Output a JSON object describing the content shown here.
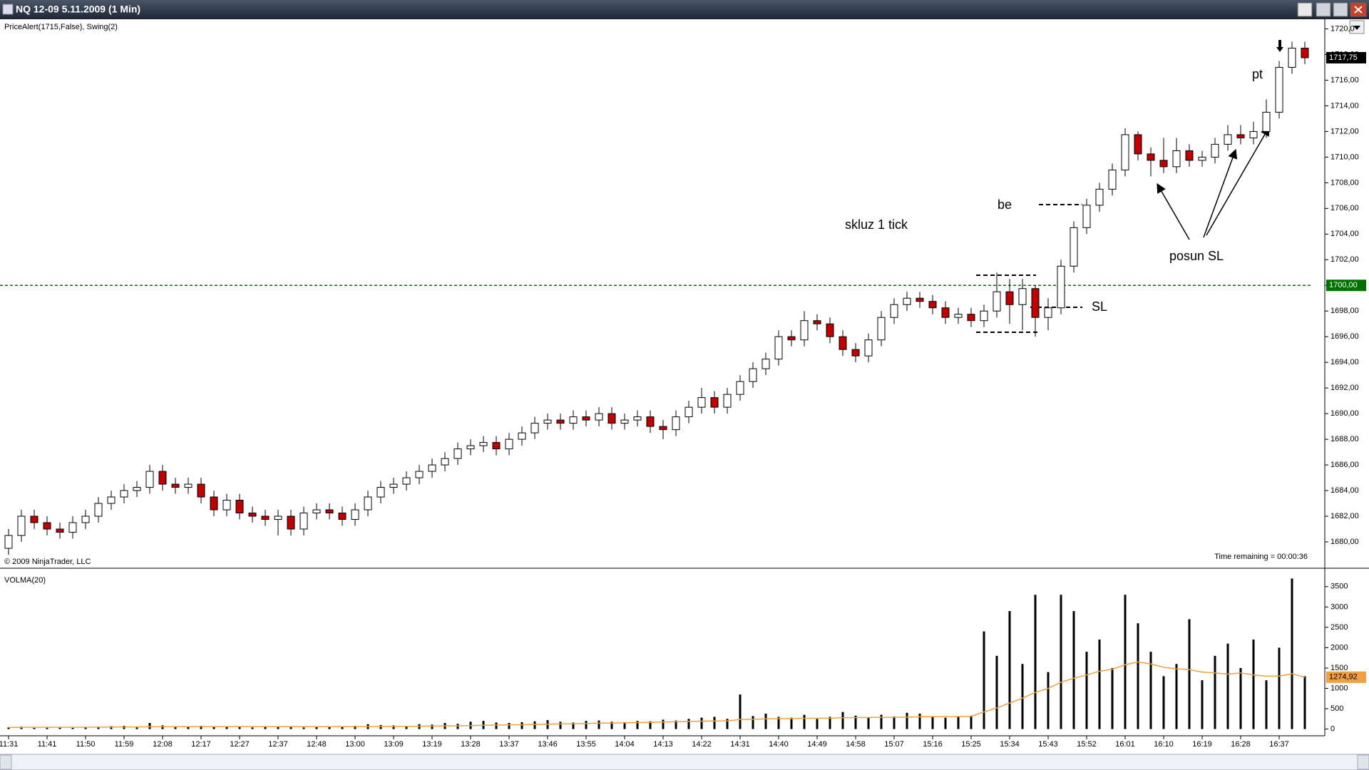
{
  "window": {
    "title": "NQ 12-09  5.11.2009 (1 Min)"
  },
  "chart_data": [
    {
      "type": "candlestick",
      "indicator_label": "PriceAlert(1715,False), Swing(2)",
      "copyright": "© 2009 NinjaTrader, LLC",
      "time_remaining": "Time remaining = 00:00:36",
      "annotations": [
        "skluz 1 tick",
        "be",
        "SL",
        "pt",
        "posun SL"
      ],
      "up_color": "#ffffff",
      "down_color": "#c00000",
      "ylim": [
        1678,
        1720.75
      ],
      "yticks": [
        {
          "value": 1680,
          "label": "1680,00"
        },
        {
          "value": 1682,
          "label": "1682,00"
        },
        {
          "value": 1684,
          "label": "1684,00"
        },
        {
          "value": 1686,
          "label": "1686,00"
        },
        {
          "value": 1688,
          "label": "1688,00"
        },
        {
          "value": 1690,
          "label": "1690,00"
        },
        {
          "value": 1692,
          "label": "1692,00"
        },
        {
          "value": 1694,
          "label": "1694,00"
        },
        {
          "value": 1696,
          "label": "1696,00"
        },
        {
          "value": 1698,
          "label": "1698,00"
        },
        {
          "value": 1700,
          "label": "1700,00"
        },
        {
          "value": 1702,
          "label": "1702,00"
        },
        {
          "value": 1704,
          "label": "1704,00"
        },
        {
          "value": 1706,
          "label": "1706,00"
        },
        {
          "value": 1708,
          "label": "1708,00"
        },
        {
          "value": 1710,
          "label": "1710,00"
        },
        {
          "value": 1712,
          "label": "1712,00"
        },
        {
          "value": 1714,
          "label": "1714,00"
        },
        {
          "value": 1716,
          "label": "1716,00"
        },
        {
          "value": 1718,
          "label": "1718,00"
        },
        {
          "value": 1720,
          "label": "1720,0"
        }
      ],
      "last_label": "1717,75",
      "alert": {
        "value": 1700,
        "label": "1700,00",
        "color": "#007000"
      },
      "open": [
        1679.5,
        1680.5,
        1682,
        1681.5,
        1681,
        1680.75,
        1681.5,
        1682,
        1683,
        1683.5,
        1684,
        1684.25,
        1685.5,
        1684.5,
        1684.25,
        1684.5,
        1683.5,
        1682.5,
        1683.25,
        1682.25,
        1682,
        1681.75,
        1682,
        1681,
        1682.25,
        1682.5,
        1682.25,
        1681.75,
        1682.5,
        1683.5,
        1684.25,
        1684.5,
        1685,
        1685.5,
        1686,
        1686.5,
        1687.25,
        1687.5,
        1687.75,
        1687.25,
        1688,
        1688.5,
        1689.25,
        1689.5,
        1689.25,
        1689.75,
        1689.5,
        1690,
        1689.25,
        1689.5,
        1689.75,
        1689,
        1688.75,
        1689.75,
        1690.5,
        1691.25,
        1690.5,
        1691.5,
        1692.5,
        1693.5,
        1694.25,
        1696,
        1695.75,
        1697.25,
        1697,
        1696,
        1695,
        1694.5,
        1695.75,
        1697.5,
        1698.5,
        1699,
        1698.75,
        1698.25,
        1697.5,
        1697.75,
        1697.25,
        1698,
        1699.5,
        1698.5,
        1699.75,
        1697.5,
        1698.25,
        1701.5,
        1704.5,
        1706.25,
        1707.5,
        1709,
        1711.75,
        1710.25,
        1709.75,
        1709.25,
        1710.5,
        1709.75,
        1710,
        1711,
        1711.75,
        1711.5,
        1712,
        1713.5,
        1717,
        1718.5
      ],
      "high": [
        1681,
        1682.5,
        1682.5,
        1682,
        1681.5,
        1682,
        1682.5,
        1683.5,
        1684,
        1684.5,
        1684.75,
        1686,
        1686,
        1685,
        1685,
        1685,
        1684,
        1683.75,
        1683.75,
        1682.75,
        1682.5,
        1682.5,
        1682.5,
        1682.75,
        1683,
        1683,
        1682.75,
        1683,
        1684,
        1684.75,
        1685,
        1685.5,
        1686,
        1686.5,
        1687,
        1687.75,
        1688,
        1688.25,
        1688.25,
        1688.5,
        1689,
        1689.75,
        1690,
        1690,
        1690.25,
        1690.25,
        1690.5,
        1690.5,
        1690,
        1690.25,
        1690.25,
        1689.5,
        1690.25,
        1691,
        1692,
        1691.75,
        1692,
        1693,
        1694,
        1694.75,
        1696.5,
        1696.5,
        1698,
        1697.75,
        1697.5,
        1696.5,
        1695.5,
        1696.25,
        1698,
        1699,
        1699.5,
        1699.5,
        1699.25,
        1698.75,
        1698.25,
        1698.25,
        1698.5,
        1701,
        1700.5,
        1700.5,
        1700,
        1699,
        1702,
        1705,
        1706.75,
        1708,
        1709.5,
        1712.25,
        1712,
        1710.75,
        1711.5,
        1711.5,
        1711,
        1710.5,
        1711.5,
        1712.5,
        1712.5,
        1712.75,
        1714.5,
        1717.5,
        1719,
        1719
      ],
      "low": [
        1679,
        1680,
        1681,
        1680.5,
        1680.25,
        1680.25,
        1681,
        1681.5,
        1682.5,
        1683,
        1683.5,
        1683.75,
        1684,
        1683.75,
        1683.75,
        1683,
        1682,
        1682,
        1681.75,
        1681.5,
        1681.25,
        1680.5,
        1680.5,
        1680.5,
        1681.75,
        1681.75,
        1681.25,
        1681.25,
        1682,
        1683,
        1683.75,
        1684,
        1684.5,
        1685,
        1685.5,
        1686,
        1686.75,
        1687,
        1686.75,
        1686.75,
        1687.5,
        1688,
        1688.75,
        1688.75,
        1688.75,
        1689,
        1689,
        1688.75,
        1688.75,
        1689,
        1688.5,
        1688,
        1688.25,
        1689.25,
        1690,
        1690,
        1690,
        1691,
        1692,
        1693,
        1693.75,
        1695.25,
        1695.25,
        1696.5,
        1695.5,
        1694.5,
        1694,
        1694,
        1695.25,
        1697,
        1698,
        1698.25,
        1697.75,
        1697,
        1697,
        1696.75,
        1696.75,
        1697.5,
        1697,
        1696.5,
        1696,
        1696.5,
        1697.75,
        1701,
        1704,
        1705.75,
        1707,
        1708.5,
        1709.75,
        1708.5,
        1708.75,
        1708.75,
        1709.25,
        1709.25,
        1709.5,
        1710.5,
        1711,
        1711,
        1711.5,
        1713,
        1716.5,
        1717.25
      ],
      "close": [
        1680.5,
        1682,
        1681.5,
        1681,
        1680.75,
        1681.5,
        1682,
        1683,
        1683.5,
        1684,
        1684.25,
        1685.5,
        1684.5,
        1684.25,
        1684.5,
        1683.5,
        1682.5,
        1683.25,
        1682.25,
        1682,
        1681.75,
        1682,
        1681,
        1682.25,
        1682.5,
        1682.25,
        1681.75,
        1682.5,
        1683.5,
        1684.25,
        1684.5,
        1685,
        1685.5,
        1686,
        1686.5,
        1687.25,
        1687.5,
        1687.75,
        1687.25,
        1688,
        1688.5,
        1689.25,
        1689.5,
        1689.25,
        1689.75,
        1689.5,
        1690,
        1689.25,
        1689.5,
        1689.75,
        1689,
        1688.75,
        1689.75,
        1690.5,
        1691.25,
        1690.5,
        1691.5,
        1692.5,
        1693.5,
        1694.25,
        1696,
        1695.75,
        1697.25,
        1697,
        1696,
        1695,
        1694.5,
        1695.75,
        1697.5,
        1698.5,
        1699,
        1698.75,
        1698.25,
        1697.5,
        1697.75,
        1697.25,
        1698,
        1699.5,
        1698.5,
        1699.75,
        1697.5,
        1698.25,
        1701.5,
        1704.5,
        1706.25,
        1707.5,
        1709,
        1711.75,
        1710.25,
        1709.75,
        1709.25,
        1710.5,
        1709.75,
        1710,
        1711,
        1711.75,
        1711.5,
        1712,
        1713.5,
        1717,
        1718.5,
        1717.75
      ]
    },
    {
      "type": "bar",
      "color": "#000000",
      "ylim": [
        -130,
        3900
      ],
      "yticks": [
        0,
        500,
        1000,
        1500,
        2000,
        2500,
        3000,
        3500
      ],
      "xticks": [
        {
          "value": 0,
          "label": "11:31"
        },
        {
          "value": 3,
          "label": "11:41"
        },
        {
          "value": 6,
          "label": "11:50"
        },
        {
          "value": 9,
          "label": "11:59"
        },
        {
          "value": 12,
          "label": "12:08"
        },
        {
          "value": 15,
          "label": "12:17"
        },
        {
          "value": 18,
          "label": "12:27"
        },
        {
          "value": 21,
          "label": "12:37"
        },
        {
          "value": 24,
          "label": "12:48"
        },
        {
          "value": 27,
          "label": "13:00"
        },
        {
          "value": 30,
          "label": "13:09"
        },
        {
          "value": 33,
          "label": "13:19"
        },
        {
          "value": 36,
          "label": "13:28"
        },
        {
          "value": 39,
          "label": "13:37"
        },
        {
          "value": 42,
          "label": "13:46"
        },
        {
          "value": 45,
          "label": "13:55"
        },
        {
          "value": 48,
          "label": "14:04"
        },
        {
          "value": 51,
          "label": "14:13"
        },
        {
          "value": 54,
          "label": "14:22"
        },
        {
          "value": 57,
          "label": "14:31"
        },
        {
          "value": 60,
          "label": "14:40"
        },
        {
          "value": 63,
          "label": "14:49"
        },
        {
          "value": 66,
          "label": "14:58"
        },
        {
          "value": 69,
          "label": "15:07"
        },
        {
          "value": 72,
          "label": "15:16"
        },
        {
          "value": 75,
          "label": "15:25"
        },
        {
          "value": 78,
          "label": "15:34"
        },
        {
          "value": 81,
          "label": "15:43"
        },
        {
          "value": 84,
          "label": "15:52"
        },
        {
          "value": 87,
          "label": "16:01"
        },
        {
          "value": 90,
          "label": "16:10"
        },
        {
          "value": 93,
          "label": "16:19"
        },
        {
          "value": 96,
          "label": "16:28"
        },
        {
          "value": 99,
          "label": "16:37"
        }
      ],
      "values": [
        40,
        60,
        30,
        50,
        40,
        30,
        50,
        60,
        70,
        80,
        60,
        150,
        90,
        70,
        60,
        80,
        50,
        70,
        60,
        40,
        70,
        60,
        50,
        40,
        50,
        60,
        50,
        80,
        120,
        100,
        90,
        80,
        120,
        110,
        150,
        130,
        180,
        200,
        160,
        150,
        170,
        190,
        220,
        180,
        160,
        200,
        210,
        180,
        170,
        200,
        190,
        230,
        210,
        250,
        280,
        300,
        250,
        850,
        320,
        380,
        300,
        280,
        350,
        250,
        300,
        420,
        330,
        290,
        350,
        310,
        400,
        380,
        300,
        280,
        310,
        330,
        2400,
        1800,
        2900,
        1600,
        3300,
        1400,
        3300,
        2900,
        1900,
        2200,
        1500,
        3300,
        2600,
        1900,
        1300,
        1600,
        2700,
        1200,
        1800,
        2100,
        1500,
        2200,
        1200,
        2000,
        3700,
        1300
      ],
      "ma": {
        "name": "VOLMA(20)",
        "color": "#f0a040",
        "last_label": "1274,92",
        "values": [
          40,
          42,
          42,
          43,
          44,
          44,
          45,
          47,
          49,
          51,
          52,
          56,
          57,
          57,
          58,
          59,
          59,
          60,
          60,
          59,
          60,
          60,
          60,
          59,
          59,
          59,
          59,
          60,
          63,
          65,
          66,
          67,
          70,
          73,
          77,
          80,
          86,
          93,
          97,
          102,
          107,
          113,
          120,
          126,
          131,
          137,
          143,
          148,
          153,
          160,
          166,
          173,
          180,
          187,
          194,
          199,
          201,
          235,
          241,
          251,
          256,
          259,
          264,
          265,
          267,
          278,
          282,
          285,
          288,
          289,
          293,
          302,
          306,
          307,
          308,
          315,
          420,
          520,
          640,
          760,
          900,
          1000,
          1150,
          1250,
          1330,
          1420,
          1470,
          1580,
          1650,
          1600,
          1520,
          1480,
          1460,
          1400,
          1380,
          1350,
          1380,
          1330,
          1300,
          1300,
          1360,
          1274.92
        ]
      }
    }
  ]
}
